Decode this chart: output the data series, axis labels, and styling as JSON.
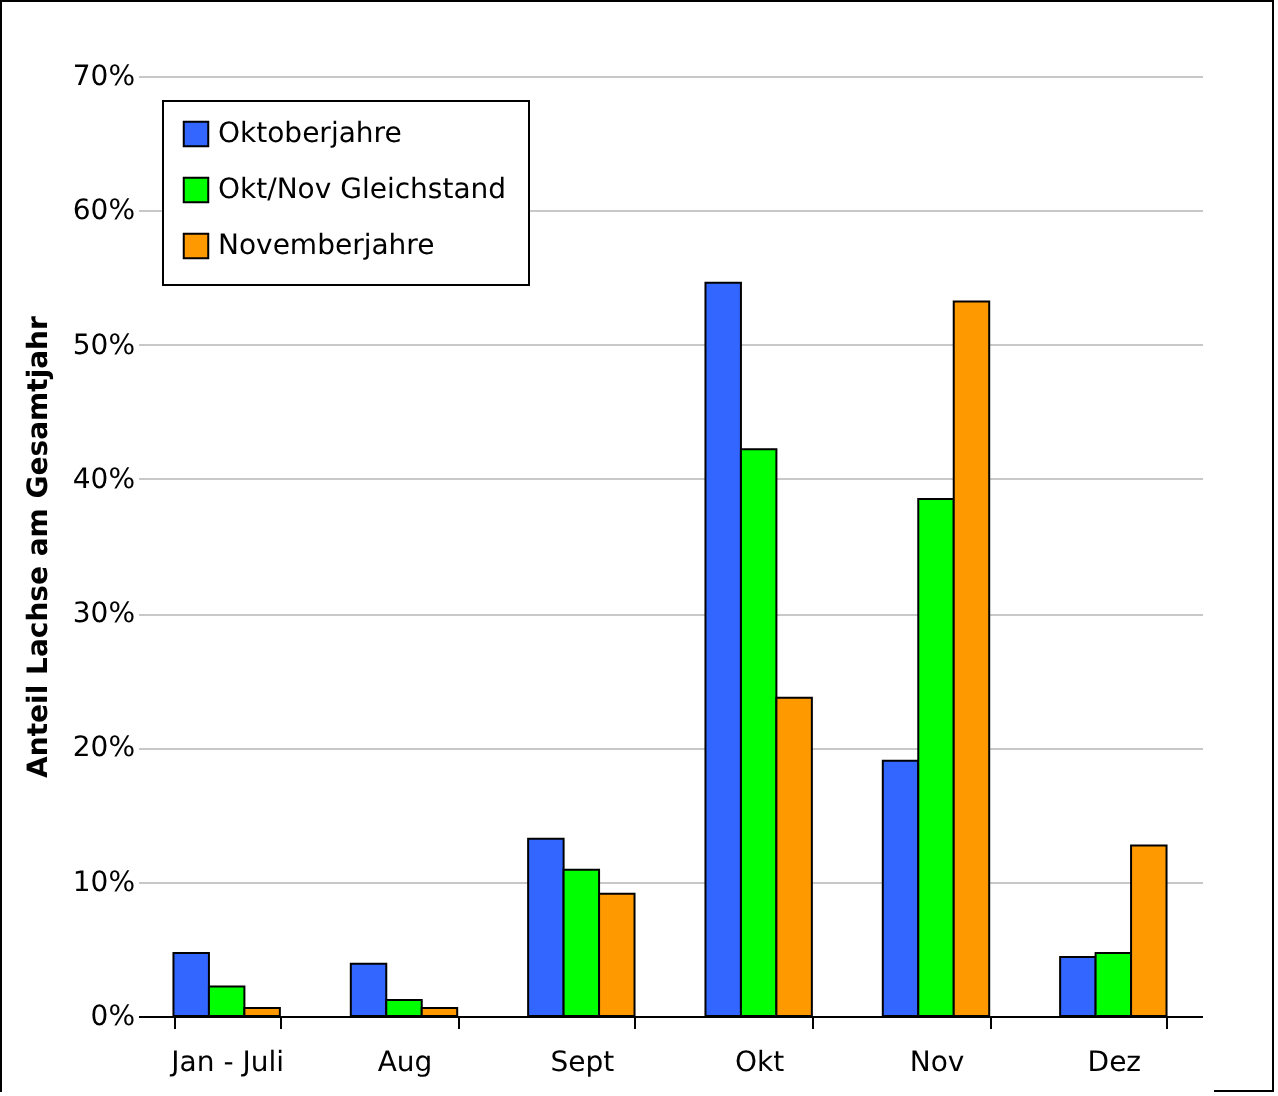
{
  "chart_data": {
    "type": "bar",
    "ylabel": "Anteil Lachse am Gesamtjahr",
    "categories": [
      "Jan - Juli",
      "Aug",
      "Sept",
      "Okt",
      "Nov",
      "Dez"
    ],
    "series": [
      {
        "name": "Oktoberjahre",
        "color": "#3366ff",
        "values": [
          4.7,
          3.9,
          13.2,
          54.6,
          19.0,
          4.4
        ]
      },
      {
        "name": "Okt/Nov Gleichstand",
        "color": "#00ff00",
        "values": [
          2.2,
          1.2,
          10.9,
          42.2,
          38.5,
          4.7
        ]
      },
      {
        "name": "Novemberjahre",
        "color": "#ff9900",
        "values": [
          0.6,
          0.6,
          9.1,
          23.7,
          53.2,
          12.7
        ]
      }
    ],
    "ylim": [
      0,
      70
    ],
    "yticks": [
      {
        "value": 0,
        "label": "0%"
      },
      {
        "value": 10,
        "label": "10%"
      },
      {
        "value": 20,
        "label": "20%"
      },
      {
        "value": 30,
        "label": "30%"
      },
      {
        "value": 40,
        "label": "40%"
      },
      {
        "value": 50,
        "label": "50%"
      },
      {
        "value": 60,
        "label": "60%"
      },
      {
        "value": 70,
        "label": "70%"
      }
    ],
    "grid": "y",
    "legend": "top left"
  }
}
